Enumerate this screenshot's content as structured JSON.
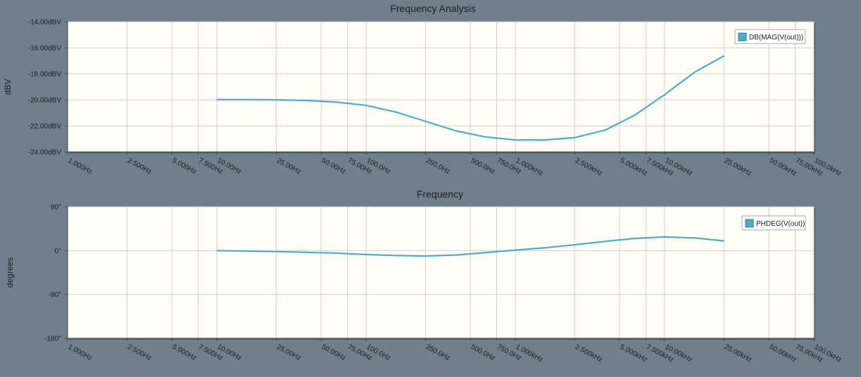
{
  "window": {
    "title": "Frequency Analysis"
  },
  "colors": {
    "background": "#6f7f8c",
    "plot_area": "#fffdf6",
    "grid": "#cfcfcf",
    "series": "#4badc6",
    "text": "#1e1e1e"
  },
  "chart_data": [
    {
      "type": "line",
      "title": "",
      "xlabel": "Frequency",
      "ylabel": "dBV",
      "xscale": "log",
      "xlim": [
        1,
        100000
      ],
      "ylim": [
        -24,
        -14
      ],
      "grid": true,
      "legend_position": "top-right",
      "x_tick_values": [
        1,
        2.5,
        5,
        7.5,
        10,
        25,
        50,
        75,
        100,
        250,
        500,
        750,
        1000,
        2500,
        5000,
        7500,
        10000,
        25000,
        50000,
        75000,
        100000
      ],
      "x_tick_labels": [
        "1.000Hz",
        "2.500Hz",
        "5.000Hz",
        "7.500Hz",
        "10.00Hz",
        "25.00Hz",
        "50.00Hz",
        "75.00Hz",
        "100.0Hz",
        "250.0Hz",
        "500.0Hz",
        "750.0Hz",
        "1.000kHz",
        "2.500kHz",
        "5.000kHz",
        "7.500kHz",
        "10.00kHz",
        "25.00kHz",
        "50.00kHz",
        "75.00kHz",
        "100.0kHz"
      ],
      "y_tick_values": [
        -24,
        -22,
        -20,
        -18,
        -16,
        -14
      ],
      "y_tick_labels": [
        "-24.00dBV",
        "-22.00dBV",
        "-20.00dBV",
        "-18.00dBV",
        "-16.00dBV",
        "-14.00dBV"
      ],
      "series": [
        {
          "name": "DB(MAG(V(out)))",
          "x": [
            10,
            16,
            25,
            40,
            63,
            100,
            160,
            250,
            400,
            630,
            1000,
            1600,
            2500,
            4000,
            6300,
            10000,
            16000,
            25000
          ],
          "y": [
            -19.98,
            -19.98,
            -20.0,
            -20.05,
            -20.17,
            -20.42,
            -20.95,
            -21.65,
            -22.38,
            -22.85,
            -23.08,
            -23.08,
            -22.9,
            -22.32,
            -21.18,
            -19.6,
            -17.85,
            -16.62
          ]
        }
      ]
    },
    {
      "type": "line",
      "title": "",
      "xlabel": "",
      "ylabel": "degrees",
      "xscale": "log",
      "xlim": [
        1,
        100000
      ],
      "ylim": [
        -180,
        90
      ],
      "grid": true,
      "legend_position": "top-right",
      "x_tick_values": [
        1,
        2.5,
        5,
        7.5,
        10,
        25,
        50,
        75,
        100,
        250,
        500,
        750,
        1000,
        2500,
        5000,
        7500,
        10000,
        25000,
        50000,
        75000,
        100000
      ],
      "x_tick_labels": [
        "1.000Hz",
        "2.500Hz",
        "5.000Hz",
        "7.500Hz",
        "10.00Hz",
        "25.00Hz",
        "50.00Hz",
        "75.00Hz",
        "100.0Hz",
        "250.0Hz",
        "500.0Hz",
        "750.0Hz",
        "1.000kHz",
        "2.500kHz",
        "5.000kHz",
        "7.500kHz",
        "10.00kHz",
        "25.00kHz",
        "50.00kHz",
        "75.00kHz",
        "100.0kHz"
      ],
      "y_tick_values": [
        -180,
        -90,
        0,
        90
      ],
      "y_tick_labels": [
        "-180°",
        "-90°",
        "0°",
        "90°"
      ],
      "series": [
        {
          "name": "PHDEG(V(out))",
          "x": [
            10,
            25,
            63,
            100,
            160,
            250,
            400,
            630,
            1000,
            1600,
            2500,
            4000,
            6300,
            10000,
            16000,
            25000
          ],
          "y": [
            0,
            -2,
            -5,
            -8,
            -10,
            -11,
            -9,
            -4,
            1,
            6,
            12,
            19,
            25,
            28,
            26,
            20
          ]
        }
      ]
    }
  ]
}
